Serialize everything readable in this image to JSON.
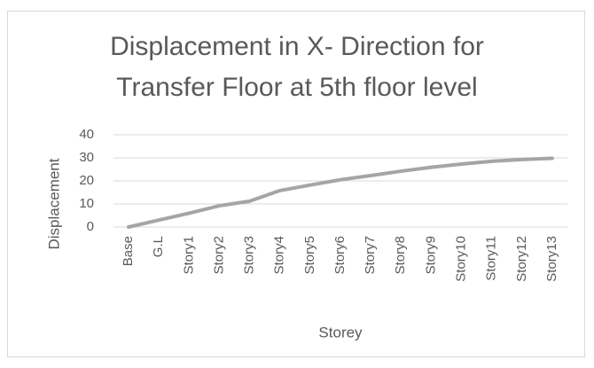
{
  "chart_data": {
    "type": "line",
    "title": "Displacement in X- Direction for Transfer Floor at 5th floor level",
    "x_label": "Storey",
    "y_label": "Displacement",
    "categories": [
      "Base",
      "G.L",
      "Story1",
      "Story2",
      "Story3",
      "Story4",
      "Story5",
      "Story6",
      "Story7",
      "Story8",
      "Story9",
      "Story10",
      "Story11",
      "Story12",
      "Story13"
    ],
    "series": [
      {
        "name": "Displacement",
        "color": "#a5a5a5",
        "values": [
          0,
          3,
          6,
          9.2,
          11.2,
          15.8,
          18.2,
          20.5,
          22.3,
          24.2,
          25.9,
          27.3,
          28.5,
          29.3,
          29.8
        ]
      }
    ],
    "ylim": [
      0,
      40
    ],
    "yticks": [
      0,
      10,
      20,
      30,
      40
    ],
    "grid": true
  }
}
